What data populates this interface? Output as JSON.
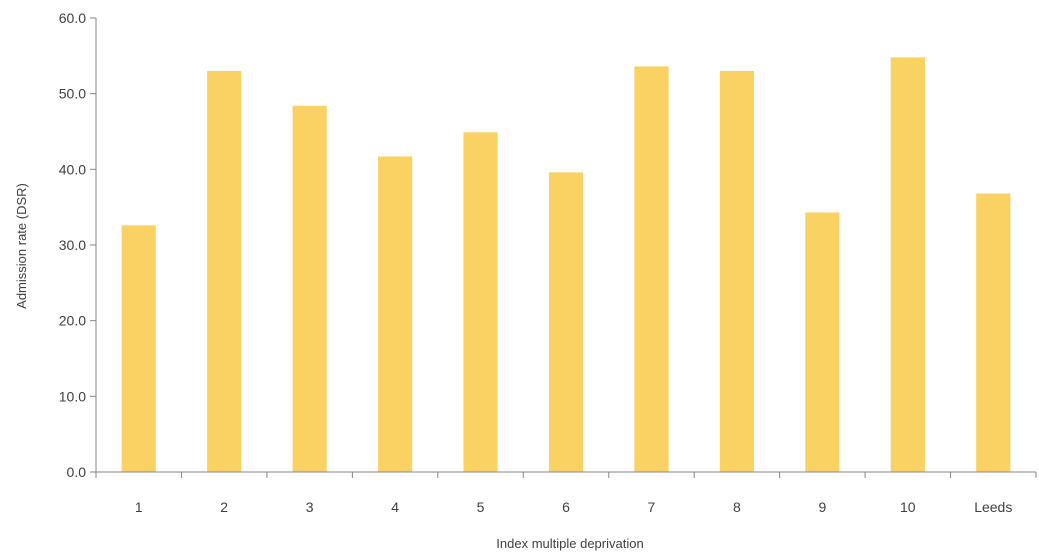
{
  "chart_data": {
    "type": "bar",
    "title": "",
    "xlabel": "Index multiple deprivation",
    "ylabel": "Admission rate (DSR)",
    "categories": [
      "1",
      "2",
      "3",
      "4",
      "5",
      "6",
      "7",
      "8",
      "9",
      "10",
      "Leeds"
    ],
    "values": [
      32.6,
      53.0,
      48.4,
      41.7,
      44.9,
      39.6,
      53.6,
      53.0,
      34.3,
      54.8,
      36.8
    ],
    "ylim": [
      0,
      60
    ],
    "yticks": [
      "0.0",
      "10.0",
      "20.0",
      "30.0",
      "40.0",
      "50.0",
      "60.0"
    ],
    "grid": false,
    "legend": "none",
    "bar_color": "#FAD264",
    "axis_color": "#868686"
  }
}
